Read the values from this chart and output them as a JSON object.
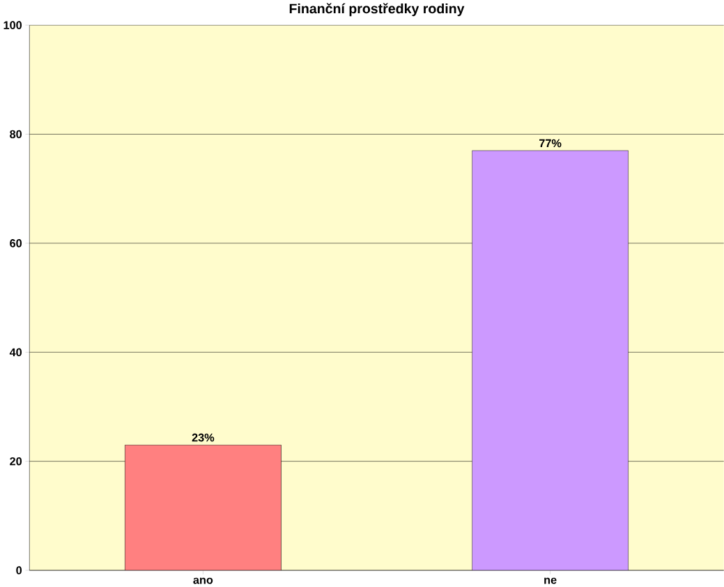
{
  "chart_data": {
    "type": "bar",
    "title": "Finanční prostředky rodiny",
    "categories": [
      "ano",
      "ne"
    ],
    "values": [
      23,
      77
    ],
    "colors": [
      "#ff8080",
      "#cc99ff"
    ],
    "value_labels": [
      "23%",
      "77%"
    ],
    "ylim": [
      0,
      100
    ],
    "yticks": [
      0,
      20,
      40,
      60,
      80,
      100
    ],
    "grid": "y"
  }
}
